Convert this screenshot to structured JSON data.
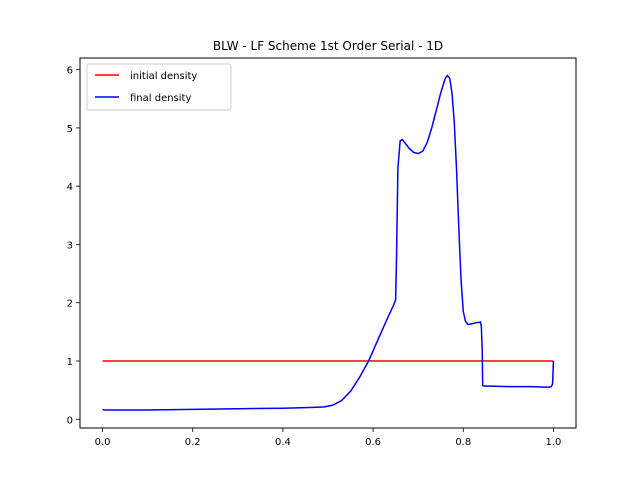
{
  "chart_data": {
    "type": "line",
    "title": "BLW - LF Scheme 1st Order Serial - 1D",
    "xlabel": "",
    "ylabel": "",
    "xlim": [
      -0.05,
      1.05
    ],
    "ylim": [
      -0.15,
      6.2
    ],
    "xticks": [
      0.0,
      0.2,
      0.4,
      0.6,
      0.8,
      1.0
    ],
    "xtick_labels": [
      "0.0",
      "0.2",
      "0.4",
      "0.6",
      "0.8",
      "1.0"
    ],
    "yticks": [
      0,
      1,
      2,
      3,
      4,
      5,
      6
    ],
    "ytick_labels": [
      "0",
      "1",
      "2",
      "3",
      "4",
      "5",
      "6"
    ],
    "grid": false,
    "legend_position": "top-left",
    "series": [
      {
        "name": "initial density",
        "color": "#ff0000",
        "x": [
          0.0,
          1.0
        ],
        "y": [
          1.0,
          1.0
        ]
      },
      {
        "name": "final density",
        "color": "#0000ff",
        "x": [
          0.0,
          0.003,
          0.05,
          0.1,
          0.2,
          0.3,
          0.4,
          0.45,
          0.49,
          0.51,
          0.53,
          0.55,
          0.57,
          0.59,
          0.61,
          0.63,
          0.645,
          0.65,
          0.652,
          0.655,
          0.66,
          0.665,
          0.67,
          0.68,
          0.69,
          0.7,
          0.71,
          0.72,
          0.73,
          0.74,
          0.75,
          0.76,
          0.765,
          0.77,
          0.775,
          0.78,
          0.785,
          0.79,
          0.795,
          0.8,
          0.805,
          0.81,
          0.815,
          0.82,
          0.83,
          0.835,
          0.838,
          0.84,
          0.842,
          0.843,
          0.846,
          0.85,
          0.9,
          0.95,
          0.99,
          0.995,
          0.998,
          1.0
        ],
        "y": [
          0.17,
          0.16,
          0.16,
          0.16,
          0.17,
          0.18,
          0.19,
          0.2,
          0.21,
          0.24,
          0.32,
          0.48,
          0.72,
          1.0,
          1.35,
          1.7,
          1.95,
          2.05,
          2.8,
          4.3,
          4.78,
          4.8,
          4.75,
          4.65,
          4.58,
          4.56,
          4.6,
          4.75,
          5.0,
          5.3,
          5.6,
          5.85,
          5.9,
          5.85,
          5.6,
          5.1,
          4.3,
          3.3,
          2.4,
          1.85,
          1.68,
          1.63,
          1.63,
          1.64,
          1.66,
          1.66,
          1.67,
          1.6,
          1.2,
          0.58,
          0.57,
          0.57,
          0.56,
          0.56,
          0.55,
          0.56,
          0.6,
          1.0
        ]
      }
    ]
  }
}
